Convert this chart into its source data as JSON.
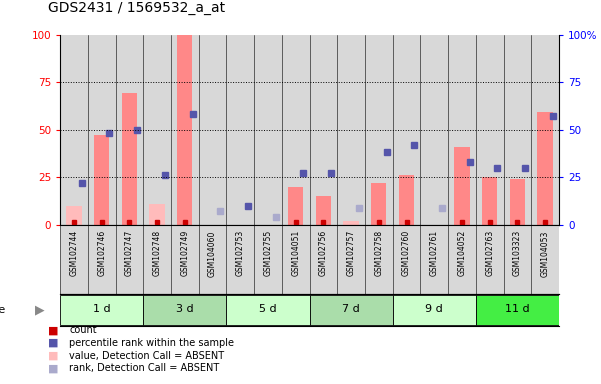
{
  "title": "GDS2431 / 1569532_a_at",
  "samples": [
    "GSM102744",
    "GSM102746",
    "GSM102747",
    "GSM102748",
    "GSM102749",
    "GSM104060",
    "GSM102753",
    "GSM102755",
    "GSM104051",
    "GSM102756",
    "GSM102757",
    "GSM102758",
    "GSM102760",
    "GSM102761",
    "GSM104052",
    "GSM102763",
    "GSM103323",
    "GSM104053"
  ],
  "groups": [
    {
      "label": "1 d",
      "indices": [
        0,
        1,
        2
      ],
      "color": "#ccffcc"
    },
    {
      "label": "3 d",
      "indices": [
        3,
        4,
        5
      ],
      "color": "#aaddaa"
    },
    {
      "label": "5 d",
      "indices": [
        6,
        7,
        8
      ],
      "color": "#ccffcc"
    },
    {
      "label": "7 d",
      "indices": [
        9,
        10,
        11
      ],
      "color": "#aaddaa"
    },
    {
      "label": "9 d",
      "indices": [
        12,
        13,
        14
      ],
      "color": "#ccffcc"
    },
    {
      "label": "11 d",
      "indices": [
        15,
        16,
        17
      ],
      "color": "#44ee44"
    }
  ],
  "bar_values": [
    10,
    47,
    69,
    11,
    100,
    0,
    0,
    0,
    20,
    15,
    2,
    22,
    26,
    0,
    41,
    25,
    24,
    59
  ],
  "bar_absent": [
    true,
    false,
    false,
    true,
    false,
    true,
    true,
    true,
    false,
    false,
    true,
    false,
    false,
    true,
    false,
    false,
    false,
    false
  ],
  "rank_values": [
    22,
    48,
    50,
    26,
    58,
    7,
    10,
    4,
    27,
    27,
    9,
    38,
    42,
    9,
    33,
    30,
    30,
    57
  ],
  "rank_absent": [
    false,
    false,
    false,
    false,
    false,
    true,
    false,
    true,
    false,
    false,
    true,
    false,
    false,
    true,
    false,
    false,
    false,
    false
  ],
  "count_values": [
    1,
    1,
    1,
    1,
    1,
    0,
    0,
    0,
    1,
    1,
    0,
    1,
    1,
    0,
    1,
    1,
    1,
    1
  ],
  "ylim": [
    0,
    100
  ],
  "yticks": [
    0,
    25,
    50,
    75,
    100
  ],
  "plot_bg": "#ffffff",
  "col_bg": "#d8d8d8",
  "bar_color_present": "#ff8888",
  "bar_color_absent": "#ffbbbb",
  "rank_color_present": "#5555aa",
  "rank_color_absent": "#aaaacc",
  "count_color": "#cc0000",
  "legend_items": [
    {
      "color": "#cc0000",
      "label": "count"
    },
    {
      "color": "#5555aa",
      "label": "percentile rank within the sample"
    },
    {
      "color": "#ffbbbb",
      "label": "value, Detection Call = ABSENT"
    },
    {
      "color": "#aaaacc",
      "label": "rank, Detection Call = ABSENT"
    }
  ]
}
